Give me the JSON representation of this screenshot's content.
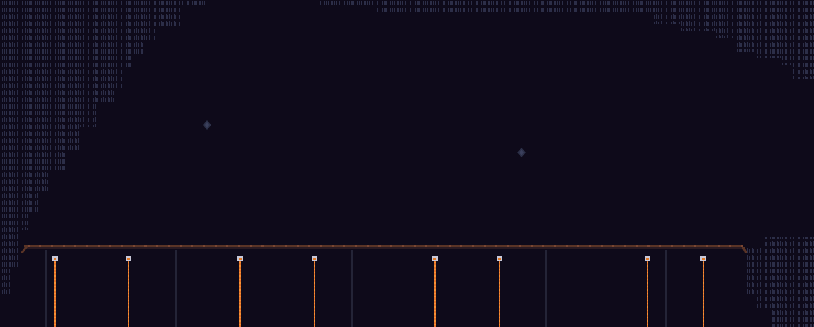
{
  "scene": {
    "type": "dungeon-room",
    "colors": {
      "background": "#0e0a1a",
      "wall_pattern": "#2c2e48",
      "beam": "#5a3426",
      "pillar": "#242437",
      "chain": "#e8742a",
      "anchor": "#c8c8d8"
    },
    "wall_regions": [
      "top-left",
      "top-right",
      "bottom-right",
      "bottom-left"
    ],
    "floating_crystals": 2,
    "hanging_chains": 8,
    "support_pillars": 5
  }
}
